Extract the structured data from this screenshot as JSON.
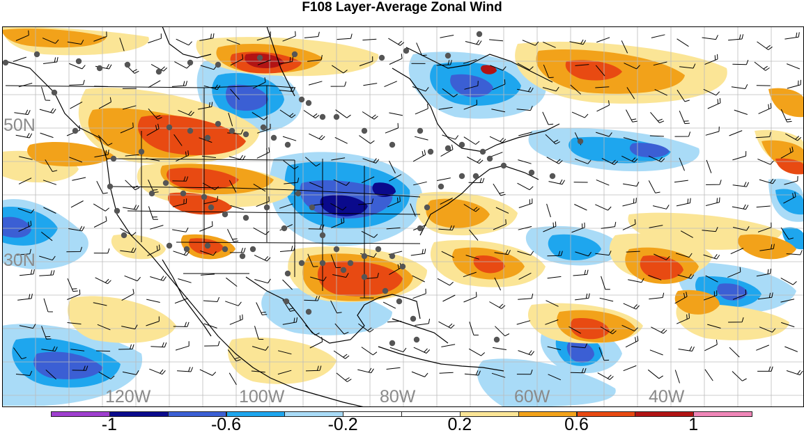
{
  "title": "F108 Layer-Average Zonal Wind",
  "map": {
    "lat_labels": [
      "50N",
      "30N"
    ],
    "lon_labels": [
      "120W",
      "100W",
      "80W",
      "60W",
      "40W"
    ],
    "graticule_step_deg": 5,
    "extent": {
      "lon": [
        -135,
        -15
      ],
      "lat": [
        20,
        63
      ]
    }
  },
  "colorbar": {
    "levels": [
      -1.2,
      -1.0,
      -0.8,
      -0.6,
      -0.4,
      -0.2,
      0,
      0.2,
      0.4,
      0.6,
      0.8,
      1.0,
      1.2
    ],
    "colors": [
      "#9f3fcf",
      "#0a0a8c",
      "#3b5fd4",
      "#1ea6ee",
      "#a9dbf7",
      "#ffffff",
      "#ffffff",
      "#fbe596",
      "#f2a21a",
      "#e84a12",
      "#b21414",
      "#ef86b8"
    ],
    "tick_labels": [
      "-1",
      "-0.6",
      "-0.2",
      "0.2",
      "0.6",
      "1"
    ],
    "tick_values": [
      -1,
      -0.6,
      -0.2,
      0.2,
      0.6,
      1
    ]
  },
  "colors": {
    "station_dot": "#555555",
    "coastline": "#000000",
    "grid": "#bbbbbb",
    "label_gray": "#8a8a8a"
  }
}
